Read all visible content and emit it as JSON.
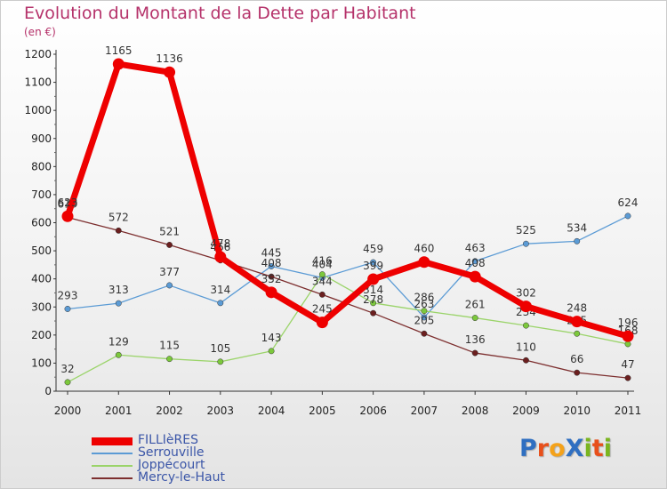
{
  "title": "Evolution du Montant de la Dette par Habitant",
  "unit": "(en €)",
  "logo": {
    "text": "Proxiti",
    "letters": [
      {
        "ch": "P",
        "color": "#2f6fc1"
      },
      {
        "ch": "r",
        "color": "#e8501b"
      },
      {
        "ch": "o",
        "color": "#f4a21a"
      },
      {
        "ch": "X",
        "color": "#2f6fc1"
      },
      {
        "ch": "i",
        "color": "#7bb51f"
      },
      {
        "ch": "t",
        "color": "#e8501b"
      },
      {
        "ch": "i",
        "color": "#7bb51f"
      }
    ]
  },
  "chart_data": {
    "type": "line",
    "x": [
      "2000",
      "2001",
      "2002",
      "2003",
      "2004",
      "2005",
      "2006",
      "2007",
      "2008",
      "2009",
      "2010",
      "2011"
    ],
    "ylim": [
      0,
      1200
    ],
    "yticks": [
      0,
      100,
      200,
      300,
      400,
      500,
      600,
      700,
      800,
      900,
      1000,
      1100,
      1200
    ],
    "grid": false,
    "legend_position": "bottom-left",
    "series": [
      {
        "name": "Serrouville",
        "color": "#5b9bd5",
        "marker": "#5b9bd5",
        "values": [
          293,
          313,
          377,
          314,
          445,
          404,
          459,
          263,
          463,
          525,
          534,
          624
        ],
        "labels": [
          "293",
          "313",
          "377",
          "314",
          "445",
          "404",
          "459",
          "263",
          "463",
          "525",
          "534",
          "624"
        ]
      },
      {
        "name": "Joppécourt",
        "color": "#9bd46a",
        "marker": "#7cc83c",
        "values": [
          32,
          129,
          115,
          105,
          143,
          416,
          314,
          286,
          261,
          234,
          205,
          168
        ],
        "labels": [
          "32",
          "129",
          "115",
          "105",
          "143",
          "416",
          "314",
          "286",
          "261",
          "234",
          "205",
          "168"
        ]
      },
      {
        "name": "Mercy-le-Haut",
        "color": "#7d2f2f",
        "marker": "#6b1f1f",
        "values": [
          619,
          572,
          521,
          466,
          408,
          344,
          278,
          205,
          136,
          110,
          66,
          47
        ],
        "labels": [
          "619",
          "572",
          "521",
          "466",
          "408",
          "344",
          "278",
          "205",
          "136",
          "110",
          "66",
          "47"
        ]
      },
      {
        "name": "FILLIèRES",
        "color": "#ee0000",
        "marker": "#ee0000",
        "values": [
          623,
          1165,
          1136,
          478,
          352,
          245,
          399,
          460,
          408,
          302,
          248,
          196
        ],
        "labels": [
          "623",
          "1165",
          "1136",
          "478",
          "352",
          "245",
          "399",
          "460",
          "408",
          "302",
          "248",
          "196"
        ]
      }
    ],
    "legend": [
      "FILLIèRES",
      "Serrouville",
      "Joppécourt",
      "Mercy-le-Haut"
    ]
  }
}
